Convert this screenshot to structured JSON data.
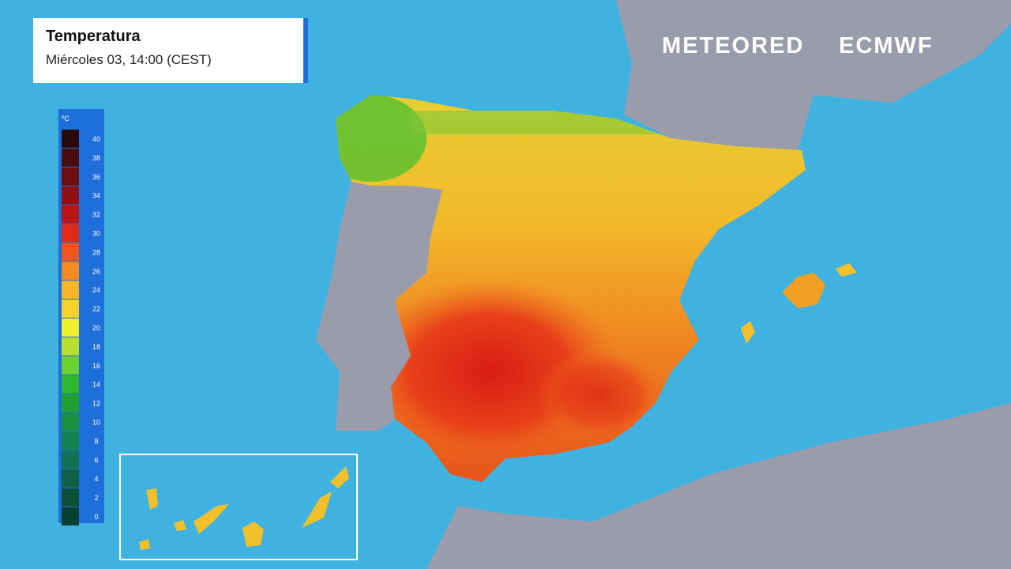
{
  "header": {
    "title": "Temperatura",
    "subtitle": "Miércoles 03, 14:00 (CEST)"
  },
  "logos": [
    "METEORED",
    "ECMWF"
  ],
  "legend": {
    "unit": "ºC",
    "ticks": [
      40,
      38,
      36,
      34,
      32,
      30,
      28,
      26,
      24,
      22,
      20,
      18,
      16,
      14,
      12,
      10,
      8,
      6,
      4,
      2,
      0
    ],
    "colors": [
      "#2a0a08",
      "#4a0c0a",
      "#6a0e0e",
      "#8e1010",
      "#b81414",
      "#e02a18",
      "#f0561c",
      "#f58a20",
      "#f8b628",
      "#f5d22e",
      "#eef030",
      "#b8e030",
      "#6cd030",
      "#30b830",
      "#20a030",
      "#1a9040",
      "#158050",
      "#137050",
      "#106045",
      "#0d5038",
      "#0a4030"
    ]
  }
}
